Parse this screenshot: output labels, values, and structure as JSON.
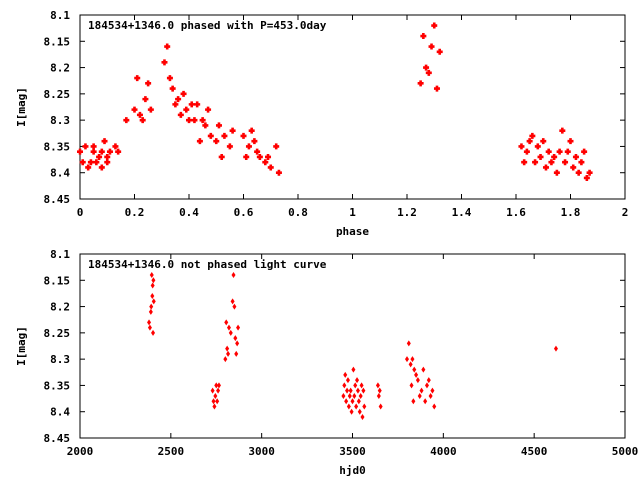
{
  "chart_data": [
    {
      "type": "scatter",
      "title": "184534+1346.0 phased with P=453.0day",
      "xlabel": "phase",
      "ylabel": "I[mag]",
      "xlim": [
        0,
        2
      ],
      "ylim": [
        8.45,
        8.1
      ],
      "y_inverted": true,
      "xticks": [
        "0",
        "0.2",
        "0.4",
        "0.6",
        "0.8",
        "1",
        "1.2",
        "1.4",
        "1.6",
        "1.8",
        "2"
      ],
      "yticks": [
        "8.1",
        "8.15",
        "8.2",
        "8.25",
        "8.3",
        "8.35",
        "8.4",
        "8.45"
      ],
      "marker_color": "#ff0000",
      "series": [
        {
          "x": [
            0.0,
            0.01,
            0.02,
            0.03,
            0.04,
            0.05,
            0.05,
            0.06,
            0.07,
            0.08,
            0.08,
            0.09,
            0.1,
            0.1,
            0.11,
            0.13,
            0.14,
            0.17,
            0.2,
            0.21,
            0.22,
            0.23,
            0.24,
            0.25,
            0.26,
            0.31,
            0.32,
            0.33,
            0.34,
            0.35,
            0.36,
            0.37,
            0.38,
            0.39,
            0.4,
            0.41,
            0.42,
            0.43,
            0.44,
            0.45,
            0.46,
            0.47,
            0.48,
            0.5,
            0.51,
            0.52,
            0.53,
            0.55,
            0.56,
            0.6,
            0.61,
            0.62,
            0.63,
            0.64,
            0.65,
            0.66,
            0.68,
            0.69,
            0.7,
            0.72,
            0.73,
            1.25,
            1.26,
            1.27,
            1.28,
            1.29,
            1.3,
            1.31,
            1.32,
            1.62,
            1.63,
            1.64,
            1.65,
            1.66,
            1.67,
            1.68,
            1.69,
            1.7,
            1.71,
            1.72,
            1.73,
            1.74,
            1.75,
            1.76,
            1.77,
            1.78,
            1.79,
            1.8,
            1.81,
            1.82,
            1.83,
            1.84,
            1.85,
            1.86,
            1.87
          ],
          "y": [
            8.36,
            8.38,
            8.35,
            8.39,
            8.38,
            8.36,
            8.35,
            8.38,
            8.37,
            8.39,
            8.36,
            8.34,
            8.37,
            8.38,
            8.36,
            8.35,
            8.36,
            8.3,
            8.28,
            8.22,
            8.29,
            8.3,
            8.26,
            8.23,
            8.28,
            8.19,
            8.16,
            8.22,
            8.24,
            8.27,
            8.26,
            8.29,
            8.25,
            8.28,
            8.3,
            8.27,
            8.3,
            8.27,
            8.34,
            8.3,
            8.31,
            8.28,
            8.33,
            8.34,
            8.31,
            8.37,
            8.33,
            8.35,
            8.32,
            8.33,
            8.37,
            8.35,
            8.32,
            8.34,
            8.36,
            8.37,
            8.38,
            8.37,
            8.39,
            8.35,
            8.4,
            8.23,
            8.14,
            8.2,
            8.21,
            8.16,
            8.12,
            8.24,
            8.17,
            8.35,
            8.38,
            8.36,
            8.34,
            8.33,
            8.38,
            8.35,
            8.37,
            8.34,
            8.39,
            8.36,
            8.38,
            8.37,
            8.4,
            8.36,
            8.32,
            8.38,
            8.36,
            8.34,
            8.39,
            8.37,
            8.4,
            8.38,
            8.36,
            8.41,
            8.4
          ]
        }
      ]
    },
    {
      "type": "scatter",
      "title": "184534+1346.0 not phased light curve",
      "xlabel": "hjd0",
      "ylabel": "I[mag]",
      "xlim": [
        2000,
        5000
      ],
      "ylim": [
        8.45,
        8.1
      ],
      "y_inverted": true,
      "xticks": [
        "2000",
        "2500",
        "3000",
        "3500",
        "4000",
        "4500",
        "5000"
      ],
      "yticks": [
        "8.1",
        "8.15",
        "8.2",
        "8.25",
        "8.3",
        "8.35",
        "8.4",
        "8.45"
      ],
      "marker_color": "#ff0000",
      "series": [
        {
          "x": [
            2380,
            2385,
            2390,
            2392,
            2395,
            2398,
            2400,
            2402,
            2404,
            2406,
            2730,
            2735,
            2740,
            2745,
            2750,
            2755,
            2760,
            2765,
            2800,
            2805,
            2810,
            2815,
            2820,
            2830,
            2840,
            2845,
            2850,
            2855,
            2860,
            2865,
            2870,
            3450,
            3455,
            3460,
            3465,
            3470,
            3475,
            3480,
            3485,
            3490,
            3495,
            3500,
            3505,
            3510,
            3515,
            3520,
            3525,
            3530,
            3535,
            3540,
            3545,
            3550,
            3555,
            3560,
            3565,
            3640,
            3645,
            3650,
            3655,
            3800,
            3810,
            3820,
            3825,
            3830,
            3835,
            3840,
            3850,
            3860,
            3870,
            3880,
            3890,
            3900,
            3910,
            3920,
            3930,
            3940,
            3950,
            4620
          ],
          "y": [
            8.23,
            8.24,
            8.21,
            8.2,
            8.14,
            8.18,
            8.16,
            8.25,
            8.15,
            8.19,
            8.36,
            8.38,
            8.39,
            8.37,
            8.35,
            8.38,
            8.36,
            8.35,
            8.3,
            8.23,
            8.28,
            8.29,
            8.24,
            8.25,
            8.19,
            8.14,
            8.2,
            8.26,
            8.29,
            8.27,
            8.24,
            8.37,
            8.35,
            8.33,
            8.38,
            8.36,
            8.34,
            8.39,
            8.37,
            8.36,
            8.4,
            8.38,
            8.32,
            8.37,
            8.35,
            8.39,
            8.34,
            8.36,
            8.38,
            8.4,
            8.37,
            8.35,
            8.41,
            8.36,
            8.39,
            8.35,
            8.37,
            8.36,
            8.39,
            8.3,
            8.27,
            8.31,
            8.35,
            8.3,
            8.38,
            8.32,
            8.33,
            8.34,
            8.37,
            8.36,
            8.32,
            8.38,
            8.35,
            8.34,
            8.37,
            8.36,
            8.39,
            8.28
          ]
        }
      ]
    }
  ]
}
